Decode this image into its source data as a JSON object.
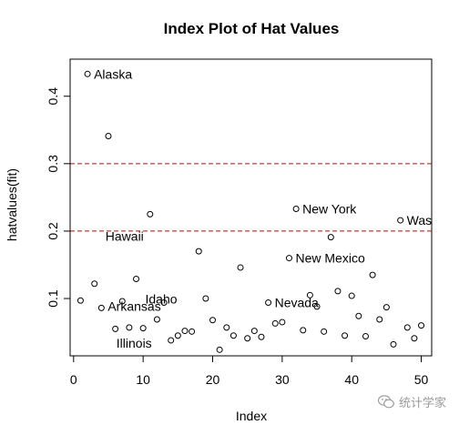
{
  "chart_data": {
    "type": "scatter",
    "title": "Index Plot of Hat Values",
    "xlabel": "Index",
    "ylabel": "hatvalues(fit)",
    "xlim": [
      -0.5,
      51.5
    ],
    "ylim": [
      0.015,
      0.455
    ],
    "xticks": [
      0,
      10,
      20,
      30,
      40,
      50
    ],
    "yticks": [
      0.1,
      0.2,
      0.3,
      0.4
    ],
    "ytick_labels": [
      "0.1",
      "0.2",
      "0.3",
      "0.4"
    ],
    "grid": false,
    "x": [
      1,
      2,
      3,
      4,
      5,
      6,
      7,
      8,
      9,
      10,
      11,
      12,
      13,
      14,
      15,
      16,
      17,
      18,
      19,
      20,
      21,
      22,
      23,
      24,
      25,
      26,
      27,
      28,
      29,
      30,
      31,
      32,
      33,
      34,
      35,
      36,
      37,
      38,
      39,
      40,
      41,
      42,
      43,
      44,
      45,
      46,
      47,
      48,
      49,
      50
    ],
    "y": [
      0.097,
      0.433,
      0.122,
      0.086,
      0.341,
      0.055,
      0.096,
      0.057,
      0.129,
      0.056,
      0.225,
      0.069,
      0.094,
      0.038,
      0.045,
      0.052,
      0.051,
      0.17,
      0.1,
      0.068,
      0.024,
      0.057,
      0.045,
      0.146,
      0.041,
      0.052,
      0.043,
      0.094,
      0.063,
      0.065,
      0.16,
      0.233,
      0.053,
      0.105,
      0.088,
      0.051,
      0.191,
      0.111,
      0.045,
      0.104,
      0.074,
      0.044,
      0.135,
      0.069,
      0.087,
      0.032,
      0.216,
      0.057,
      0.041,
      0.06
    ],
    "reference_lines": [
      {
        "y": 0.2,
        "color": "#cc0000",
        "style": "dashed"
      },
      {
        "y": 0.3,
        "color": "#cc0000",
        "style": "dashed"
      }
    ],
    "annotations": [
      {
        "index": 2,
        "text": "Alaska"
      },
      {
        "index": 11,
        "text": "Hawaii"
      },
      {
        "index": 12,
        "text": "Illinois"
      },
      {
        "index": 4,
        "text": "Arkansas"
      },
      {
        "index": 13,
        "text": "Idaho"
      },
      {
        "index": 28,
        "text": "Nevada"
      },
      {
        "index": 31,
        "text": "New Mexico"
      },
      {
        "index": 32,
        "text": "New York"
      },
      {
        "index": 47,
        "text": "Was"
      }
    ]
  },
  "watermark": {
    "text": "统计学家",
    "icon": "wechat-icon"
  }
}
